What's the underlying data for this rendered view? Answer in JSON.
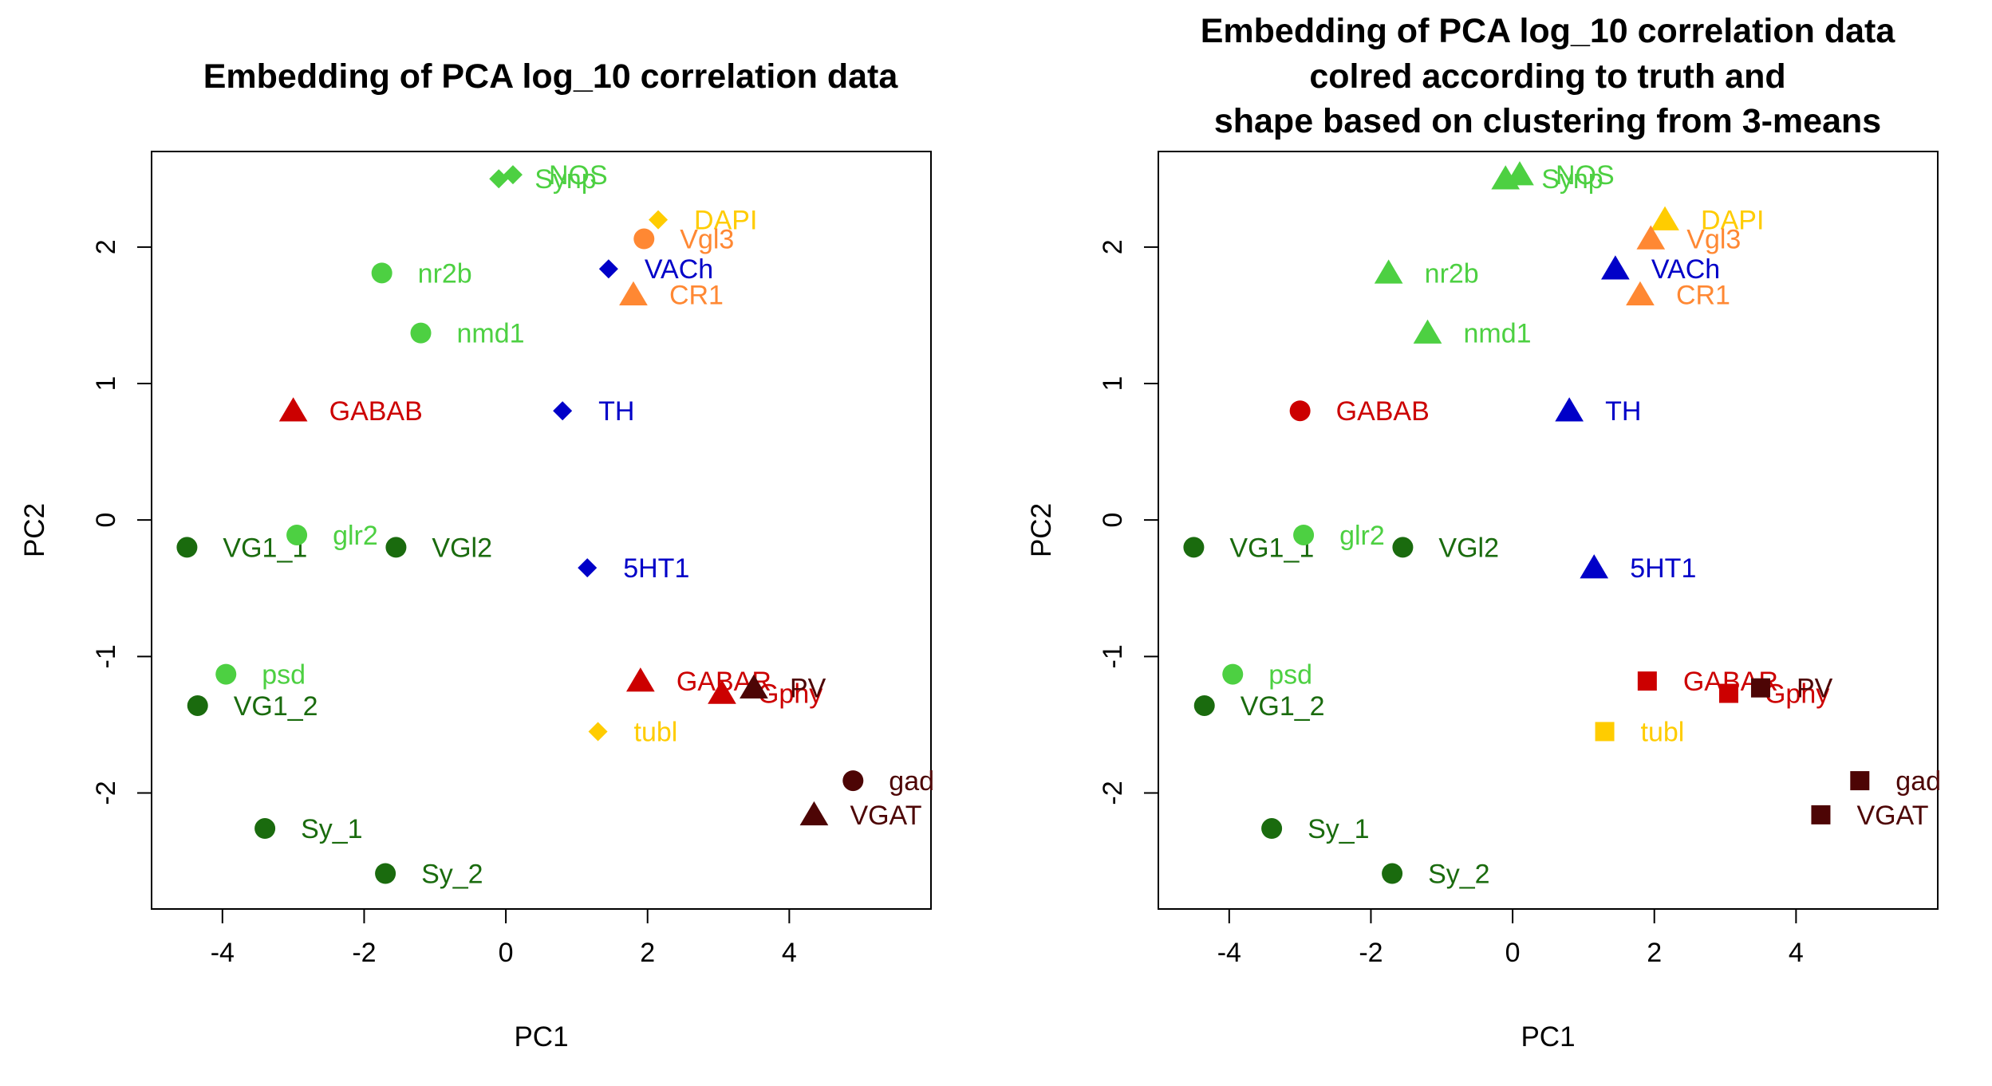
{
  "chart_data": [
    {
      "type": "scatter",
      "title": [
        "Embedding of PCA log_10 correlation data"
      ],
      "xlabel": "PC1",
      "ylabel": "PC2",
      "xlim": [
        -5,
        6
      ],
      "ylim": [
        -2.85,
        2.7
      ],
      "xticks": [
        -4,
        -2,
        0,
        2,
        4
      ],
      "yticks": [
        -2,
        -1,
        0,
        1,
        2
      ],
      "grid": false,
      "points": [
        {
          "label": "NOS",
          "x": 0.1,
          "y": 2.53,
          "color": "#4dd042",
          "shape": "diamond"
        },
        {
          "label": "Synp",
          "x": -0.1,
          "y": 2.5,
          "color": "#4dd042",
          "shape": "diamond"
        },
        {
          "label": "DAPI",
          "x": 2.15,
          "y": 2.2,
          "color": "#ffcc00",
          "shape": "diamond"
        },
        {
          "label": "Vgl3",
          "x": 1.95,
          "y": 2.06,
          "color": "#ff8833",
          "shape": "circle"
        },
        {
          "label": "VACh",
          "x": 1.45,
          "y": 1.84,
          "color": "#0000c8",
          "shape": "diamond"
        },
        {
          "label": "CR1",
          "x": 1.8,
          "y": 1.65,
          "color": "#ff8833",
          "shape": "triangle"
        },
        {
          "label": "nr2b",
          "x": -1.75,
          "y": 1.81,
          "color": "#4dd042",
          "shape": "circle"
        },
        {
          "label": "nmd1",
          "x": -1.2,
          "y": 1.37,
          "color": "#4dd042",
          "shape": "circle"
        },
        {
          "label": "GABAB",
          "x": -3.0,
          "y": 0.8,
          "color": "#cc0000",
          "shape": "triangle"
        },
        {
          "label": "TH",
          "x": 0.8,
          "y": 0.8,
          "color": "#0000c8",
          "shape": "diamond"
        },
        {
          "label": "VG1_1",
          "x": -4.5,
          "y": -0.2,
          "color": "#1a6b0e",
          "shape": "circle"
        },
        {
          "label": "glr2",
          "x": -2.95,
          "y": -0.11,
          "color": "#4dd042",
          "shape": "circle"
        },
        {
          "label": "VGl2",
          "x": -1.55,
          "y": -0.2,
          "color": "#1a6b0e",
          "shape": "circle"
        },
        {
          "label": "5HT1",
          "x": 1.15,
          "y": -0.35,
          "color": "#0000c8",
          "shape": "diamond"
        },
        {
          "label": "psd",
          "x": -3.95,
          "y": -1.13,
          "color": "#4dd042",
          "shape": "circle"
        },
        {
          "label": "VG1_2",
          "x": -4.35,
          "y": -1.36,
          "color": "#1a6b0e",
          "shape": "circle"
        },
        {
          "label": "GABAR",
          "x": 1.9,
          "y": -1.18,
          "color": "#cc0000",
          "shape": "triangle"
        },
        {
          "label": "Gphy",
          "x": 3.05,
          "y": -1.27,
          "color": "#cc0000",
          "shape": "triangle"
        },
        {
          "label": "PV",
          "x": 3.5,
          "y": -1.23,
          "color": "#4d0505",
          "shape": "triangle"
        },
        {
          "label": "tubl",
          "x": 1.3,
          "y": -1.55,
          "color": "#ffcc00",
          "shape": "diamond"
        },
        {
          "label": "gad",
          "x": 4.9,
          "y": -1.91,
          "color": "#4d0505",
          "shape": "circle"
        },
        {
          "label": "VGAT",
          "x": 4.35,
          "y": -2.16,
          "color": "#4d0505",
          "shape": "triangle"
        },
        {
          "label": "Sy_1",
          "x": -3.4,
          "y": -2.26,
          "color": "#1a6b0e",
          "shape": "circle"
        },
        {
          "label": "Sy_2",
          "x": -1.7,
          "y": -2.59,
          "color": "#1a6b0e",
          "shape": "circle"
        }
      ]
    },
    {
      "type": "scatter",
      "title": [
        "Embedding of PCA log_10 correlation data",
        "colred according to truth and",
        "shape based on clustering from 3-means"
      ],
      "xlabel": "PC1",
      "ylabel": "PC2",
      "xlim": [
        -5,
        6
      ],
      "ylim": [
        -2.85,
        2.7
      ],
      "xticks": [
        -4,
        -2,
        0,
        2,
        4
      ],
      "yticks": [
        -2,
        -1,
        0,
        1,
        2
      ],
      "grid": false,
      "points": [
        {
          "label": "NOS",
          "x": 0.1,
          "y": 2.53,
          "color": "#4dd042",
          "shape": "triangle"
        },
        {
          "label": "Synp",
          "x": -0.1,
          "y": 2.5,
          "color": "#4dd042",
          "shape": "triangle"
        },
        {
          "label": "DAPI",
          "x": 2.15,
          "y": 2.2,
          "color": "#ffcc00",
          "shape": "triangle"
        },
        {
          "label": "Vgl3",
          "x": 1.95,
          "y": 2.06,
          "color": "#ff8833",
          "shape": "triangle"
        },
        {
          "label": "VACh",
          "x": 1.45,
          "y": 1.84,
          "color": "#0000c8",
          "shape": "triangle"
        },
        {
          "label": "CR1",
          "x": 1.8,
          "y": 1.65,
          "color": "#ff8833",
          "shape": "triangle"
        },
        {
          "label": "nr2b",
          "x": -1.75,
          "y": 1.81,
          "color": "#4dd042",
          "shape": "triangle"
        },
        {
          "label": "nmd1",
          "x": -1.2,
          "y": 1.37,
          "color": "#4dd042",
          "shape": "triangle"
        },
        {
          "label": "GABAB",
          "x": -3.0,
          "y": 0.8,
          "color": "#cc0000",
          "shape": "circle"
        },
        {
          "label": "TH",
          "x": 0.8,
          "y": 0.8,
          "color": "#0000c8",
          "shape": "triangle"
        },
        {
          "label": "VG1_1",
          "x": -4.5,
          "y": -0.2,
          "color": "#1a6b0e",
          "shape": "circle"
        },
        {
          "label": "glr2",
          "x": -2.95,
          "y": -0.11,
          "color": "#4dd042",
          "shape": "circle"
        },
        {
          "label": "VGl2",
          "x": -1.55,
          "y": -0.2,
          "color": "#1a6b0e",
          "shape": "circle"
        },
        {
          "label": "5HT1",
          "x": 1.15,
          "y": -0.35,
          "color": "#0000c8",
          "shape": "triangle"
        },
        {
          "label": "psd",
          "x": -3.95,
          "y": -1.13,
          "color": "#4dd042",
          "shape": "circle"
        },
        {
          "label": "VG1_2",
          "x": -4.35,
          "y": -1.36,
          "color": "#1a6b0e",
          "shape": "circle"
        },
        {
          "label": "GABAR",
          "x": 1.9,
          "y": -1.18,
          "color": "#cc0000",
          "shape": "square"
        },
        {
          "label": "Gphy",
          "x": 3.05,
          "y": -1.27,
          "color": "#cc0000",
          "shape": "square"
        },
        {
          "label": "PV",
          "x": 3.5,
          "y": -1.23,
          "color": "#4d0505",
          "shape": "square"
        },
        {
          "label": "tubl",
          "x": 1.3,
          "y": -1.55,
          "color": "#ffcc00",
          "shape": "square"
        },
        {
          "label": "gad",
          "x": 4.9,
          "y": -1.91,
          "color": "#4d0505",
          "shape": "square"
        },
        {
          "label": "VGAT",
          "x": 4.35,
          "y": -2.16,
          "color": "#4d0505",
          "shape": "square"
        },
        {
          "label": "Sy_1",
          "x": -3.4,
          "y": -2.26,
          "color": "#1a6b0e",
          "shape": "circle"
        },
        {
          "label": "Sy_2",
          "x": -1.7,
          "y": -2.59,
          "color": "#1a6b0e",
          "shape": "circle"
        }
      ]
    }
  ]
}
